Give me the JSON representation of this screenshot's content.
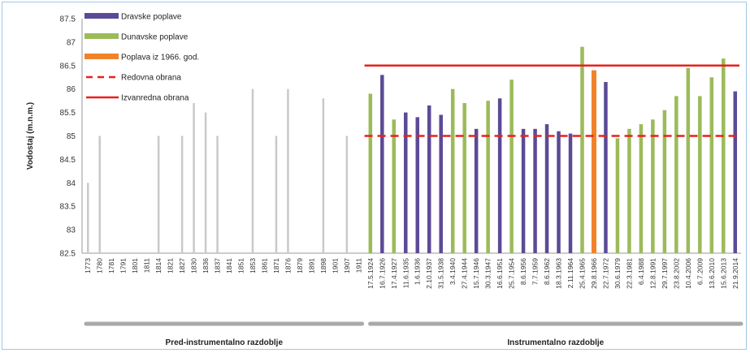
{
  "chart_data": {
    "type": "bar",
    "title": "",
    "xlabel": "",
    "ylabel": "Vodostaj (m.n.m.)",
    "ylim": [
      82.5,
      87.5
    ],
    "yticks": [
      "82.5",
      "83",
      "83.5",
      "84",
      "84.5",
      "85",
      "85.5",
      "86",
      "86.5",
      "87",
      "87.5"
    ],
    "grid": false,
    "legend_position": "top-left",
    "legend": [
      {
        "label": "Dravske poplave",
        "kind": "bar",
        "color": "#5b4b96"
      },
      {
        "label": "Dunavske poplave",
        "kind": "bar",
        "color": "#9bbb59"
      },
      {
        "label": "Poplava iz 1966. god.",
        "kind": "bar",
        "color": "#f0822a"
      },
      {
        "label": "Redovna obrana",
        "kind": "dashed-line",
        "color": "#e8211b"
      },
      {
        "label": "Izvanredna obrana",
        "kind": "line",
        "color": "#e8211b"
      }
    ],
    "reference_lines": [
      {
        "name": "Redovna obrana",
        "value": 85.0,
        "style": "dashed",
        "color": "#e8211b"
      },
      {
        "name": "Izvanredna obrana",
        "value": 86.5,
        "style": "solid",
        "color": "#e8211b"
      }
    ],
    "periods": [
      {
        "label": "Pred-instrumentalno razdoblje",
        "from": "1773",
        "to": "1911"
      },
      {
        "label": "Instrumentalno razdoblje",
        "from": "17.5.1924",
        "to": "21.9.2014"
      }
    ],
    "colors": {
      "drava": "#5b4b96",
      "dunav": "#9bbb59",
      "flood1966": "#f0822a",
      "historic": "#c9c9c9",
      "defense": "#e8211b",
      "period_bar": "#a9a9a9"
    },
    "categories": [
      {
        "label": "1773",
        "value": 84.0,
        "type": "historic"
      },
      {
        "label": "1780",
        "value": 85.0,
        "type": "historic"
      },
      {
        "label": "1781",
        "value": null,
        "type": "historic"
      },
      {
        "label": "1791",
        "value": null,
        "type": "historic"
      },
      {
        "label": "1801",
        "value": null,
        "type": "historic"
      },
      {
        "label": "1811",
        "value": null,
        "type": "historic"
      },
      {
        "label": "1814",
        "value": 85.0,
        "type": "historic"
      },
      {
        "label": "1821",
        "value": null,
        "type": "historic"
      },
      {
        "label": "1827",
        "value": 85.0,
        "type": "historic"
      },
      {
        "label": "1830",
        "value": 85.9,
        "type": "historic"
      },
      {
        "label": "1836",
        "value": 85.5,
        "type": "historic"
      },
      {
        "label": "1837",
        "value": 85.0,
        "type": "historic"
      },
      {
        "label": "1841",
        "value": null,
        "type": "historic"
      },
      {
        "label": "1851",
        "value": null,
        "type": "historic"
      },
      {
        "label": "1853",
        "value": 86.0,
        "type": "historic"
      },
      {
        "label": "1861",
        "value": null,
        "type": "historic"
      },
      {
        "label": "1871",
        "value": 85.0,
        "type": "historic"
      },
      {
        "label": "1876",
        "value": 86.0,
        "type": "historic"
      },
      {
        "label": "1879",
        "value": null,
        "type": "historic"
      },
      {
        "label": "1891",
        "value": null,
        "type": "historic"
      },
      {
        "label": "1898",
        "value": 85.8,
        "type": "historic"
      },
      {
        "label": "1901",
        "value": null,
        "type": "historic"
      },
      {
        "label": "1907",
        "value": 85.0,
        "type": "historic"
      },
      {
        "label": "1911",
        "value": null,
        "type": "historic"
      },
      {
        "label": "17.5.1924",
        "value": 85.9,
        "type": "dunav"
      },
      {
        "label": "16.7.1926",
        "value": 86.3,
        "type": "drava"
      },
      {
        "label": "17.4.1927",
        "value": 85.35,
        "type": "dunav"
      },
      {
        "label": "11.6.1935",
        "value": 85.5,
        "type": "drava"
      },
      {
        "label": "1.6.1936",
        "value": 85.4,
        "type": "drava"
      },
      {
        "label": "2.10.1937",
        "value": 85.65,
        "type": "drava"
      },
      {
        "label": "31.5.1938",
        "value": 85.45,
        "type": "drava"
      },
      {
        "label": "3.4.1940",
        "value": 86.0,
        "type": "dunav"
      },
      {
        "label": "27.4.1944",
        "value": 85.7,
        "type": "dunav"
      },
      {
        "label": "15.7.1946",
        "value": 85.15,
        "type": "drava"
      },
      {
        "label": "30.3.1947",
        "value": 85.75,
        "type": "dunav"
      },
      {
        "label": "16.6.1951",
        "value": 85.8,
        "type": "drava"
      },
      {
        "label": "25.7.1954",
        "value": 86.2,
        "type": "dunav"
      },
      {
        "label": "8.6.1956",
        "value": 85.15,
        "type": "drava"
      },
      {
        "label": "7.7.1959",
        "value": 85.15,
        "type": "drava"
      },
      {
        "label": "8.6.1962",
        "value": 85.25,
        "type": "drava"
      },
      {
        "label": "18.3.1963",
        "value": 85.1,
        "type": "drava"
      },
      {
        "label": "2.11.1964",
        "value": 85.05,
        "type": "drava"
      },
      {
        "label": "25.4.1965",
        "value": 86.9,
        "type": "dunav"
      },
      {
        "label": "29.8.1966",
        "value": 86.4,
        "type": "flood1966"
      },
      {
        "label": "22.7.1972",
        "value": 86.15,
        "type": "drava"
      },
      {
        "label": "30.6.1979",
        "value": 84.95,
        "type": "dunav"
      },
      {
        "label": "22.3.1981",
        "value": 85.15,
        "type": "dunav"
      },
      {
        "label": "6.4.1988",
        "value": 85.25,
        "type": "dunav"
      },
      {
        "label": "12.8.1991",
        "value": 85.35,
        "type": "dunav"
      },
      {
        "label": "29.7.1997",
        "value": 85.55,
        "type": "dunav"
      },
      {
        "label": "23.8.2002",
        "value": 85.85,
        "type": "dunav"
      },
      {
        "label": "10.4.2006",
        "value": 86.45,
        "type": "dunav"
      },
      {
        "label": "6.7.2009",
        "value": 85.85,
        "type": "dunav"
      },
      {
        "label": "13.6.2010",
        "value": 86.25,
        "type": "dunav"
      },
      {
        "label": "15.6.2013",
        "value": 86.65,
        "type": "dunav"
      },
      {
        "label": "21.9.2014",
        "value": 85.95,
        "type": "drava"
      }
    ]
  }
}
